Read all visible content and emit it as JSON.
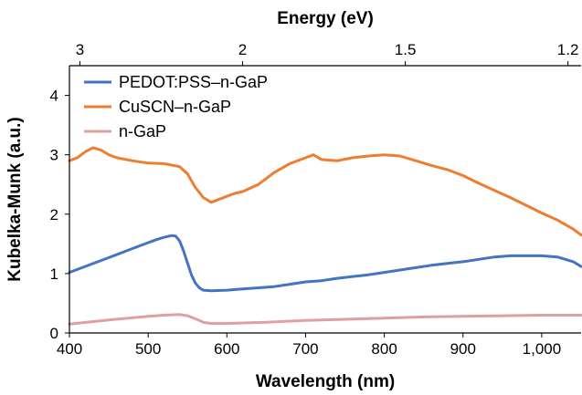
{
  "chart_data": {
    "type": "line",
    "title": "",
    "xlabel": "Wavelength (nm)",
    "ylabel": "Kubelka-Munk  (a.u.)",
    "x2label": "Energy (eV)",
    "xlim": [
      400,
      1050
    ],
    "ylim": [
      0,
      4.5
    ],
    "xticks": [
      400,
      500,
      600,
      700,
      800,
      900,
      1000
    ],
    "xtick_labels": [
      "400",
      "500",
      "600",
      "700",
      "800",
      "900",
      "1,000"
    ],
    "yticks": [
      0,
      1,
      2,
      3,
      4
    ],
    "ytick_labels": [
      "0",
      "1",
      "2",
      "3",
      "4"
    ],
    "x2ticks": [
      {
        "label": "3",
        "wavelength": 413.3
      },
      {
        "label": "2",
        "wavelength": 620
      },
      {
        "label": "1.5",
        "wavelength": 826.7
      },
      {
        "label": "1.2",
        "wavelength": 1033.3
      }
    ],
    "grid": false,
    "legend": "top-left",
    "series": [
      {
        "name": "PEDOT:PSS–n-GaP",
        "color": "#4472C4",
        "x": [
          400,
          420,
          440,
          460,
          480,
          500,
          510,
          520,
          530,
          535,
          540,
          545,
          550,
          555,
          560,
          565,
          570,
          580,
          600,
          620,
          640,
          660,
          680,
          700,
          720,
          740,
          760,
          780,
          800,
          820,
          840,
          860,
          880,
          900,
          920,
          940,
          960,
          980,
          1000,
          1020,
          1040,
          1050
        ],
        "y": [
          1.02,
          1.12,
          1.22,
          1.32,
          1.42,
          1.52,
          1.57,
          1.61,
          1.64,
          1.63,
          1.55,
          1.38,
          1.18,
          0.98,
          0.84,
          0.76,
          0.72,
          0.71,
          0.72,
          0.74,
          0.76,
          0.78,
          0.82,
          0.86,
          0.88,
          0.92,
          0.95,
          0.98,
          1.02,
          1.06,
          1.1,
          1.14,
          1.17,
          1.2,
          1.24,
          1.28,
          1.3,
          1.3,
          1.3,
          1.28,
          1.2,
          1.12
        ]
      },
      {
        "name": "CuSCN–n-GaP",
        "color": "#ED7D31",
        "x": [
          400,
          410,
          420,
          430,
          440,
          450,
          460,
          480,
          500,
          520,
          540,
          550,
          560,
          570,
          580,
          590,
          600,
          610,
          620,
          640,
          660,
          680,
          700,
          710,
          720,
          740,
          760,
          780,
          800,
          820,
          840,
          860,
          880,
          900,
          920,
          940,
          960,
          980,
          1000,
          1020,
          1040,
          1050
        ],
        "y": [
          2.9,
          2.95,
          3.05,
          3.12,
          3.08,
          3.0,
          2.95,
          2.9,
          2.86,
          2.85,
          2.8,
          2.68,
          2.45,
          2.28,
          2.2,
          2.25,
          2.3,
          2.35,
          2.38,
          2.5,
          2.7,
          2.85,
          2.95,
          3.0,
          2.92,
          2.9,
          2.95,
          2.98,
          3.0,
          2.98,
          2.9,
          2.82,
          2.75,
          2.65,
          2.52,
          2.4,
          2.28,
          2.15,
          2.02,
          1.9,
          1.75,
          1.65
        ]
      },
      {
        "name": "n-GaP",
        "color": "#E0A0A0",
        "x": [
          400,
          450,
          500,
          520,
          540,
          550,
          560,
          570,
          580,
          600,
          650,
          700,
          750,
          800,
          850,
          900,
          950,
          1000,
          1050
        ],
        "y": [
          0.15,
          0.22,
          0.28,
          0.3,
          0.31,
          0.29,
          0.24,
          0.18,
          0.16,
          0.16,
          0.18,
          0.21,
          0.23,
          0.25,
          0.27,
          0.28,
          0.29,
          0.3,
          0.3
        ]
      }
    ]
  }
}
